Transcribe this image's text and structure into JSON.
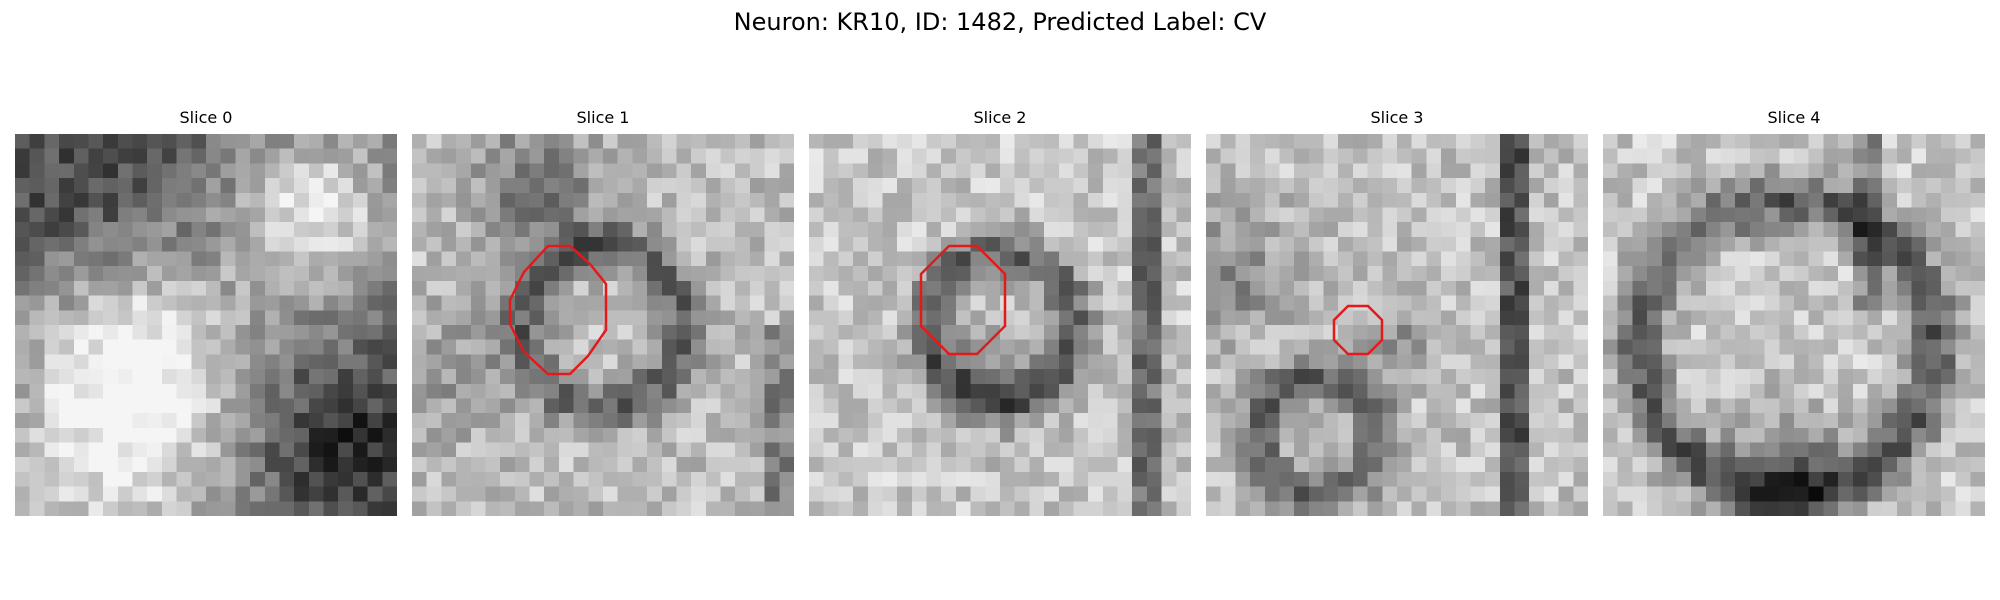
{
  "figure": {
    "title": "Neuron: KR10, ID: 1482, Predicted Label: CV",
    "roi_color": "#e31a1c"
  },
  "panels": [
    {
      "title": "Slice 0",
      "has_roi": false
    },
    {
      "title": "Slice 1",
      "has_roi": true
    },
    {
      "title": "Slice 2",
      "has_roi": true
    },
    {
      "title": "Slice 3",
      "has_roi": true
    },
    {
      "title": "Slice 4",
      "has_roi": false
    }
  ]
}
